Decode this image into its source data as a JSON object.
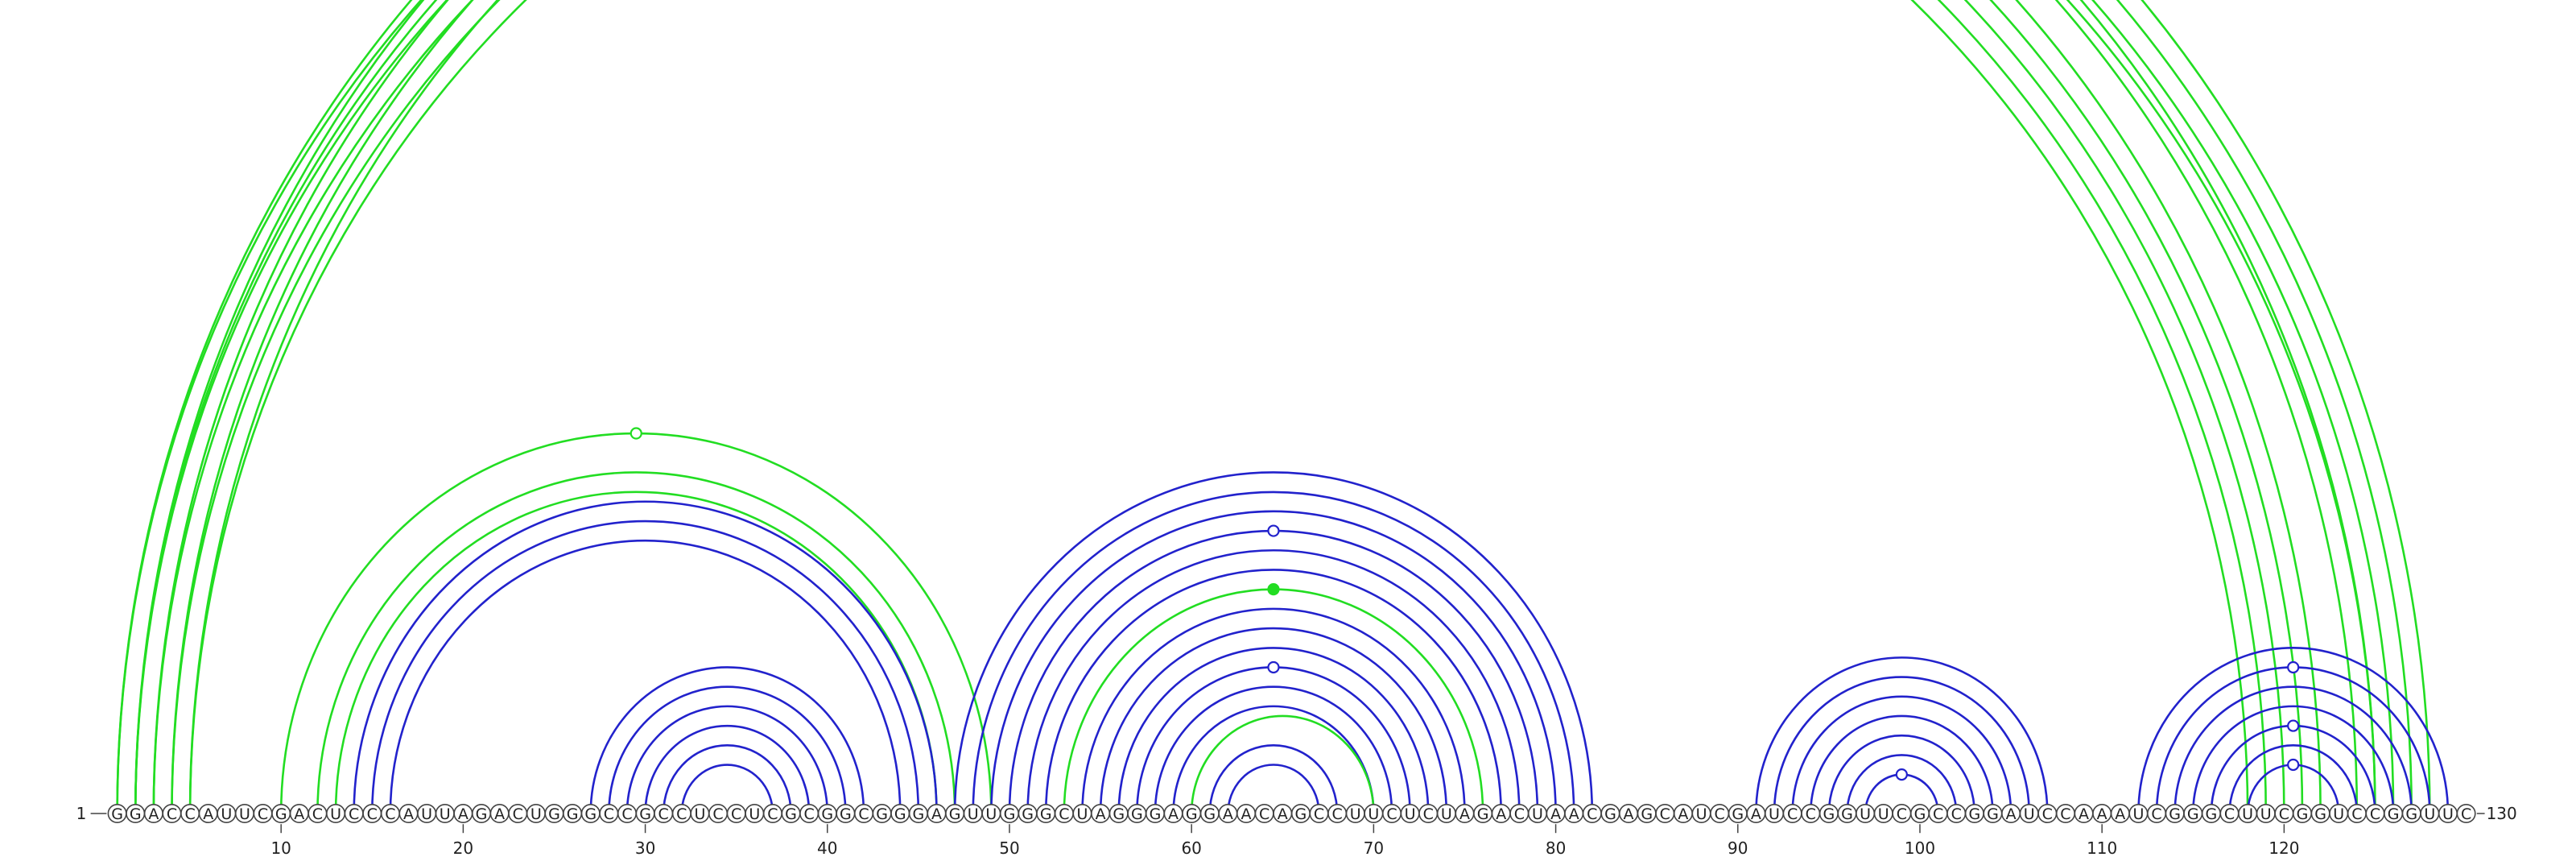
{
  "sequence": "GGACCAUUCGACUCCCAUUAGACUGGGCCGCCUCCUCGCGGCGGGAGUUGGGCUAGGGAGGAACAGCCUUCUCUAGACUAACGAGCAUCGAUCCGGUUCGCCGGAUCCAAAUCGGGCUUCGGUCCGGUUC",
  "start_label": "1",
  "end_label": "130",
  "tick_labels": [
    "10",
    "20",
    "30",
    "40",
    "50",
    "60",
    "70",
    "80",
    "90",
    "100",
    "110",
    "120"
  ],
  "colors": {
    "green": "#22dd22",
    "blue": "#2222cc",
    "nucleotide_outline": "#444444"
  },
  "chart_data": {
    "type": "arc-diagram",
    "length": 130,
    "helices": [
      {
        "color": "green",
        "pairs": [
          [
            1,
            122
          ],
          [
            2,
            121
          ],
          [
            3,
            120
          ],
          [
            4,
            119
          ],
          [
            5,
            118
          ]
        ]
      },
      {
        "color": "green",
        "pairs": [
          [
            2,
            128
          ],
          [
            3,
            127
          ]
        ]
      },
      {
        "color": "green",
        "pairs": [
          [
            1,
            125
          ],
          [
            2,
            124
          ]
        ]
      },
      {
        "color": "green",
        "pairs": [
          [
            4,
            126
          ],
          [
            5,
            125
          ]
        ]
      },
      {
        "color": "green",
        "pairs": [
          [
            10,
            49
          ]
        ]
      },
      {
        "color": "green",
        "pairs": [
          [
            12,
            47
          ],
          [
            13,
            46
          ]
        ]
      },
      {
        "color": "blue",
        "pairs": [
          [
            14,
            46
          ],
          [
            15,
            45
          ],
          [
            16,
            44
          ]
        ]
      },
      {
        "color": "blue",
        "pairs": [
          [
            27,
            42
          ],
          [
            28,
            41
          ],
          [
            29,
            40
          ],
          [
            30,
            39
          ],
          [
            31,
            38
          ],
          [
            32,
            37
          ]
        ]
      },
      {
        "color": "blue",
        "pairs": [
          [
            47,
            82
          ],
          [
            48,
            81
          ],
          [
            49,
            80
          ],
          [
            50,
            79
          ],
          [
            51,
            78
          ],
          [
            52,
            77
          ]
        ]
      },
      {
        "color": "green",
        "pairs": [
          [
            53,
            76
          ]
        ]
      },
      {
        "color": "blue",
        "pairs": [
          [
            54,
            75
          ],
          [
            55,
            74
          ],
          [
            56,
            73
          ],
          [
            57,
            72
          ],
          [
            58,
            71
          ],
          [
            59,
            70
          ]
        ]
      },
      {
        "color": "green",
        "pairs": [
          [
            60,
            70
          ]
        ]
      },
      {
        "color": "blue",
        "pairs": [
          [
            61,
            68
          ],
          [
            62,
            67
          ]
        ]
      },
      {
        "color": "blue",
        "pairs": [
          [
            91,
            107
          ],
          [
            92,
            106
          ],
          [
            93,
            105
          ],
          [
            94,
            104
          ],
          [
            95,
            103
          ],
          [
            96,
            102
          ],
          [
            97,
            101
          ]
        ]
      },
      {
        "color": "blue",
        "pairs": [
          [
            112,
            129
          ],
          [
            113,
            128
          ],
          [
            114,
            127
          ],
          [
            115,
            126
          ],
          [
            116,
            125
          ],
          [
            117,
            124
          ],
          [
            118,
            123
          ]
        ]
      }
    ],
    "apex_markers": [
      {
        "pair": [
          3,
          127
        ],
        "color": "green",
        "filled": false
      },
      {
        "pair": [
          10,
          49
        ],
        "color": "green",
        "filled": false
      },
      {
        "pair": [
          50,
          79
        ],
        "color": "blue",
        "filled": false
      },
      {
        "pair": [
          53,
          76
        ],
        "color": "green",
        "filled": true
      },
      {
        "pair": [
          57,
          72
        ],
        "color": "blue",
        "filled": false
      },
      {
        "pair": [
          97,
          101
        ],
        "color": "blue",
        "filled": false
      },
      {
        "pair": [
          113,
          128
        ],
        "color": "blue",
        "filled": false
      },
      {
        "pair": [
          116,
          125
        ],
        "color": "blue",
        "filled": false
      },
      {
        "pair": [
          118,
          123
        ],
        "color": "blue",
        "filled": false
      }
    ]
  }
}
